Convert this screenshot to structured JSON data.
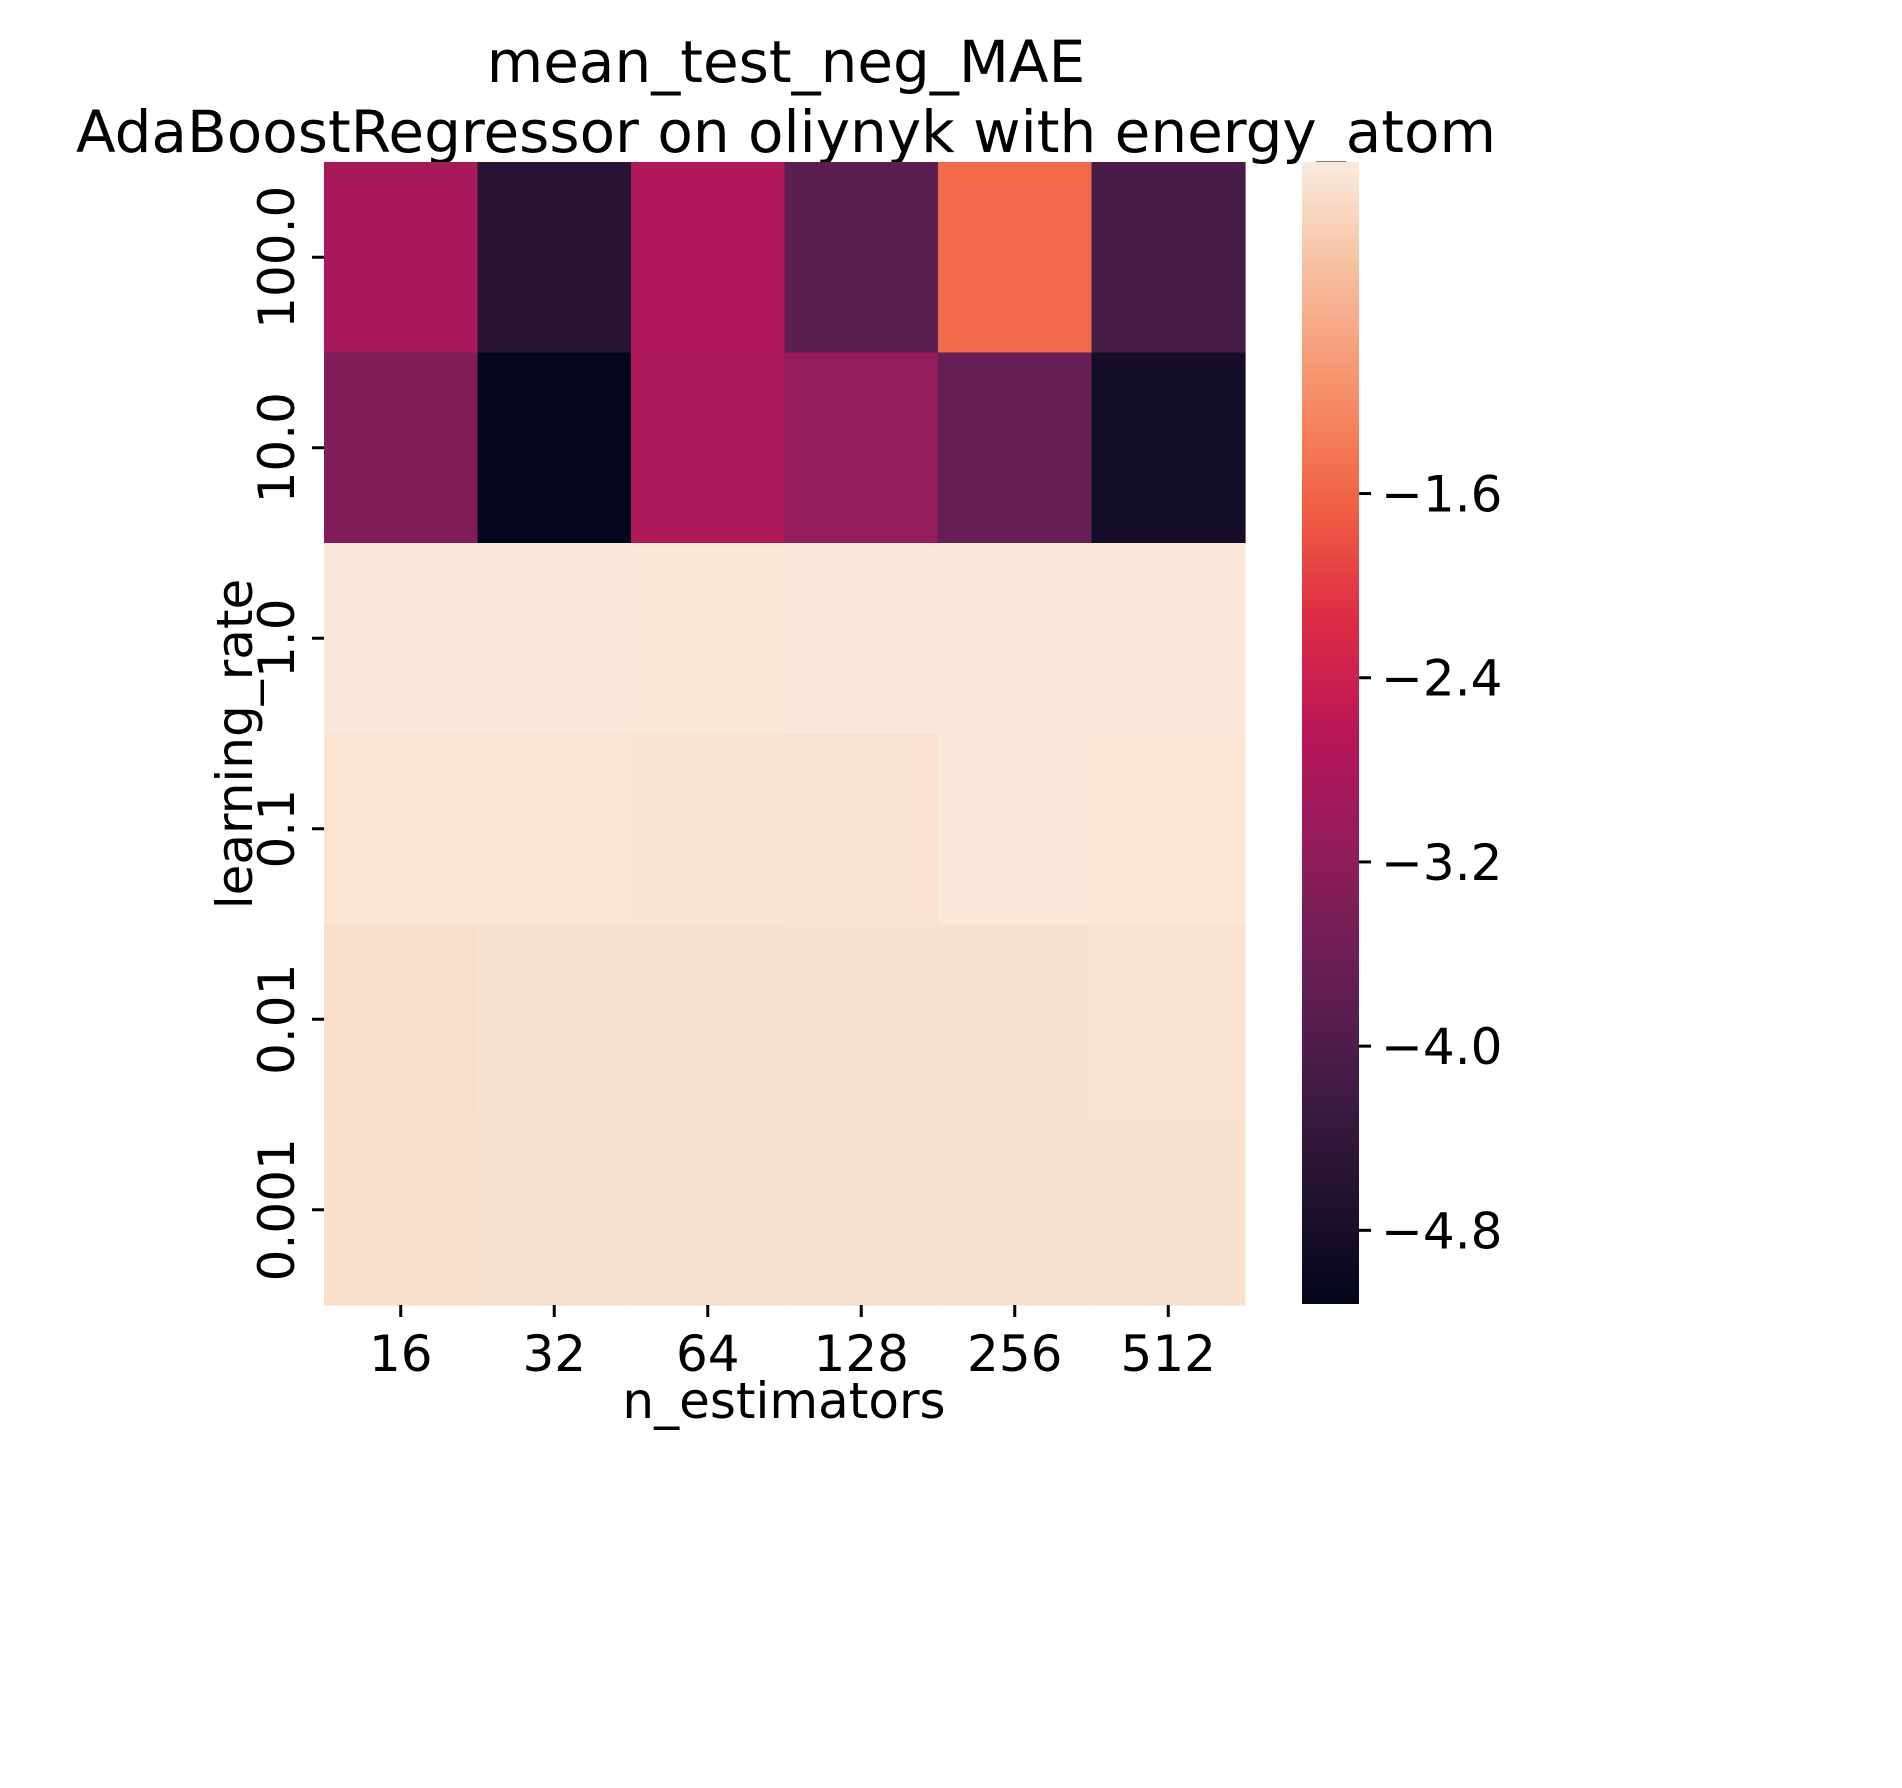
{
  "chart_data": {
    "type": "heatmap",
    "title": "mean_test_neg_MAE",
    "subtitle": "AdaBoostRegressor on oliynyk with energy_atom",
    "xlabel": "n_estimators",
    "ylabel": "learning_rate",
    "x_categories": [
      "16",
      "32",
      "64",
      "128",
      "256",
      "512"
    ],
    "y_categories": [
      "100.0",
      "10.0",
      "1.0",
      "0.1",
      "0.01",
      "0.001"
    ],
    "values": [
      [
        -2.85,
        -4.55,
        -2.75,
        -3.85,
        -1.55,
        -4.1
      ],
      [
        -3.35,
        -5.1,
        -2.8,
        -3.1,
        -3.7,
        -4.85
      ],
      [
        -0.18,
        -0.18,
        -0.19,
        -0.18,
        -0.18,
        -0.18
      ],
      [
        -0.22,
        -0.22,
        -0.24,
        -0.25,
        -0.18,
        -0.2
      ],
      [
        -0.3,
        -0.27,
        -0.27,
        -0.27,
        -0.27,
        -0.25
      ],
      [
        -0.28,
        -0.27,
        -0.27,
        -0.27,
        -0.27,
        -0.27
      ]
    ],
    "colorbar": {
      "ticks": [
        "−1.6",
        "−2.4",
        "−3.2",
        "−4.0",
        "−4.8"
      ],
      "tick_values": [
        -1.6,
        -2.4,
        -3.2,
        -4.0,
        -4.8
      ],
      "vmin": -5.12,
      "vmax": -0.16
    },
    "colormap": "rocket"
  }
}
